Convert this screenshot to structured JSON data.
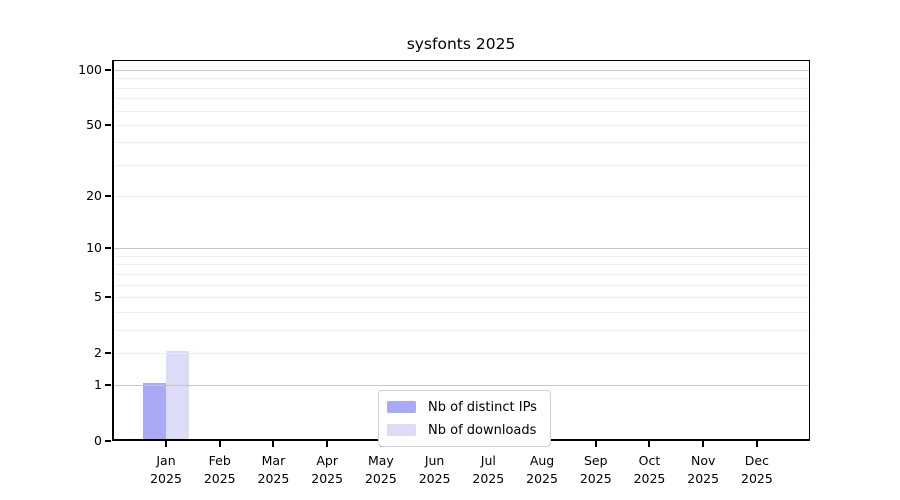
{
  "chart_data": {
    "type": "bar",
    "title": "sysfonts 2025",
    "categories": [
      "Jan",
      "Feb",
      "Mar",
      "Apr",
      "May",
      "Jun",
      "Jul",
      "Aug",
      "Sep",
      "Oct",
      "Nov",
      "Dec"
    ],
    "x_tick_label_line2": "2025",
    "series": [
      {
        "name": "Nb of distinct IPs",
        "color": "#a9a9f6",
        "values": [
          1,
          0,
          0,
          0,
          0,
          0,
          0,
          0,
          0,
          0,
          0,
          0
        ]
      },
      {
        "name": "Nb of downloads",
        "color": "#dcdcf6",
        "values": [
          2,
          0,
          0,
          0,
          0,
          0,
          0,
          0,
          0,
          0,
          0,
          0
        ]
      }
    ],
    "y_axis": {
      "scale": "log1p",
      "range": [
        0,
        113
      ],
      "ticks": [
        0,
        1,
        2,
        5,
        10,
        20,
        50,
        100
      ],
      "major_gridlines": [
        1,
        10,
        100
      ],
      "minor_gridlines": [
        2,
        3,
        4,
        5,
        6,
        7,
        8,
        9,
        20,
        30,
        40,
        50,
        60,
        70,
        80,
        90
      ]
    },
    "grid": "horizontal",
    "legend_position": "bottom-center-inside"
  },
  "colors": {
    "background": "#ffffff",
    "axis": "#000000",
    "grid_major": "#c6c6c6",
    "grid_minor": "#ededed",
    "legend_border": "#d2d2d2",
    "text": "#000000"
  }
}
